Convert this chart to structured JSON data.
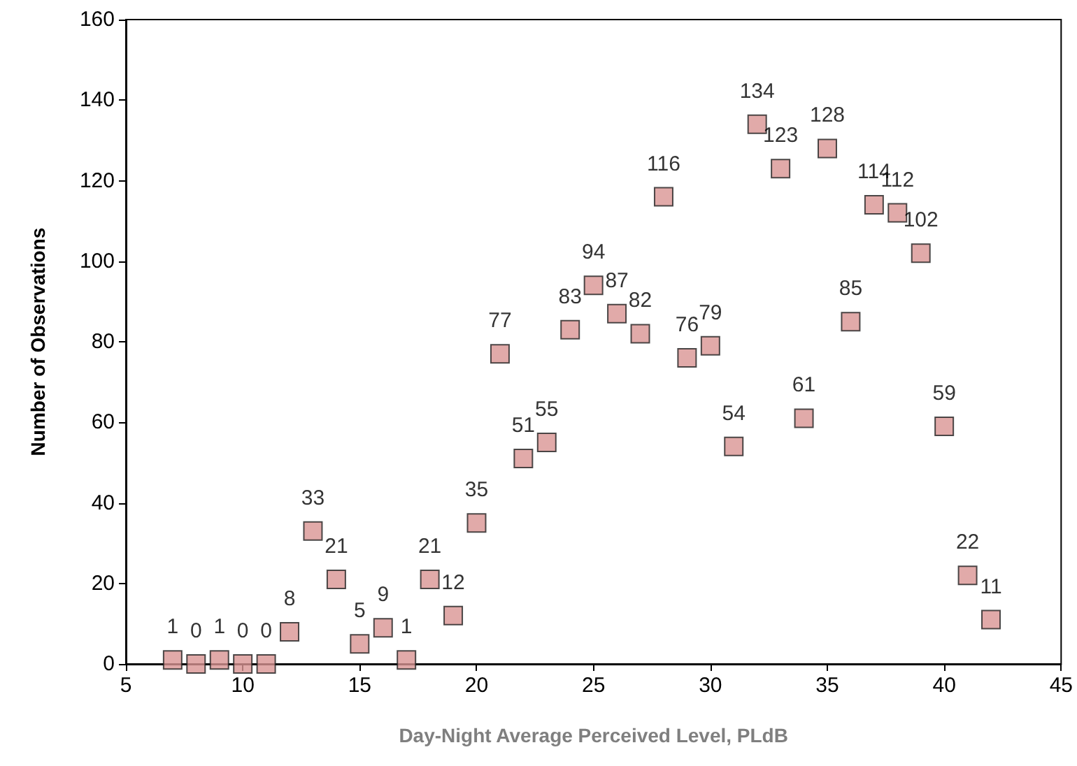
{
  "chart_data": {
    "type": "scatter",
    "xlabel": "Day-Night Average Perceived Level, PLdB",
    "ylabel": "Number of Observations",
    "x": [
      7,
      8,
      9,
      10,
      11,
      12,
      13,
      14,
      15,
      16,
      17,
      18,
      19,
      20,
      21,
      22,
      23,
      24,
      25,
      26,
      27,
      28,
      29,
      30,
      31,
      32,
      33,
      34,
      35,
      36,
      37,
      38,
      39,
      40,
      41,
      42
    ],
    "values": [
      1,
      0,
      1,
      0,
      0,
      8,
      33,
      21,
      5,
      9,
      1,
      21,
      12,
      35,
      77,
      51,
      55,
      83,
      94,
      87,
      82,
      116,
      76,
      79,
      54,
      134,
      123,
      61,
      128,
      85,
      114,
      112,
      102,
      59,
      22,
      11
    ],
    "color": "#d99594",
    "marker": "square",
    "data_labels": true,
    "grid": false,
    "xlim": [
      5,
      45
    ],
    "xticks": [
      5,
      10,
      15,
      20,
      25,
      30,
      35,
      40,
      45
    ],
    "ylim": [
      0,
      160
    ],
    "yticks": [
      0,
      20,
      40,
      60,
      80,
      100,
      120,
      140,
      160
    ]
  }
}
